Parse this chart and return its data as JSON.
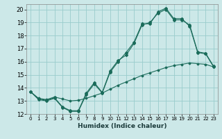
{
  "xlabel": "Humidex (Indice chaleur)",
  "background_color": "#cce8e8",
  "grid_color": "#99cccc",
  "line_color": "#1a6b5a",
  "xlim": [
    -0.5,
    23.5
  ],
  "ylim": [
    12,
    20.4
  ],
  "xticks": [
    0,
    1,
    2,
    3,
    4,
    5,
    6,
    7,
    8,
    9,
    10,
    11,
    12,
    13,
    14,
    15,
    16,
    17,
    18,
    19,
    20,
    21,
    22,
    23
  ],
  "yticks": [
    12,
    13,
    14,
    15,
    16,
    17,
    18,
    19,
    20
  ],
  "line1_x": [
    0,
    1,
    2,
    3,
    4,
    5,
    6,
    7,
    8,
    9,
    10,
    11,
    12,
    13,
    14,
    15,
    16,
    17,
    18,
    19,
    20,
    21,
    22,
    23
  ],
  "line1_y": [
    13.7,
    13.1,
    13.0,
    13.2,
    12.5,
    12.2,
    12.2,
    13.5,
    14.3,
    13.6,
    15.2,
    16.0,
    16.7,
    17.5,
    18.9,
    18.9,
    19.8,
    20.1,
    19.3,
    19.3,
    18.7,
    16.7,
    16.6,
    15.6
  ],
  "line2_x": [
    0,
    1,
    2,
    3,
    4,
    5,
    6,
    7,
    8,
    9,
    10,
    11,
    12,
    13,
    14,
    15,
    16,
    17,
    18,
    19,
    20,
    21,
    22,
    23
  ],
  "line2_y": [
    13.7,
    13.15,
    13.05,
    13.25,
    12.55,
    12.25,
    12.25,
    13.6,
    14.4,
    13.65,
    15.3,
    16.1,
    16.5,
    17.4,
    18.8,
    19.0,
    19.7,
    20.0,
    19.2,
    19.2,
    18.8,
    16.75,
    16.65,
    15.65
  ],
  "line3_x": [
    0,
    1,
    2,
    3,
    4,
    5,
    6,
    7,
    8,
    9,
    10,
    11,
    12,
    13,
    14,
    15,
    16,
    17,
    18,
    19,
    20,
    21,
    22,
    23
  ],
  "line3_y": [
    13.7,
    13.2,
    13.1,
    13.3,
    13.15,
    13.0,
    13.05,
    13.2,
    13.4,
    13.6,
    13.9,
    14.2,
    14.45,
    14.7,
    14.95,
    15.15,
    15.35,
    15.55,
    15.7,
    15.8,
    15.9,
    15.85,
    15.8,
    15.6
  ]
}
